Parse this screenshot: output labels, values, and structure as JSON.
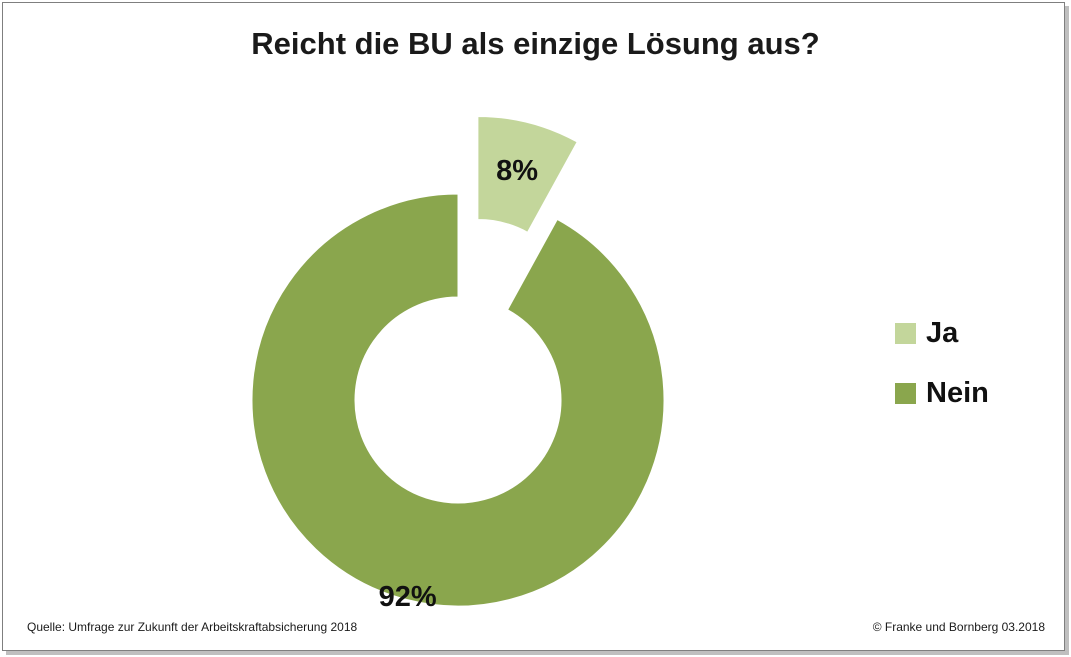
{
  "chart_data": {
    "type": "pie",
    "title": "Reicht die BU als einzige Lösung aus?",
    "slices": [
      {
        "name": "Ja",
        "value": 8,
        "label": "8%",
        "color": "#c3d69b",
        "exploded": true
      },
      {
        "name": "Nein",
        "value": 92,
        "label": "92%",
        "color": "#8aa64d",
        "exploded": false
      }
    ],
    "donut": true,
    "legend_position": "right"
  },
  "footer": {
    "source": "Quelle: Umfrage zur Zukunft der Arbeitskraftabsicherung 2018",
    "copyright": "© Franke und Bornberg 03.2018"
  }
}
